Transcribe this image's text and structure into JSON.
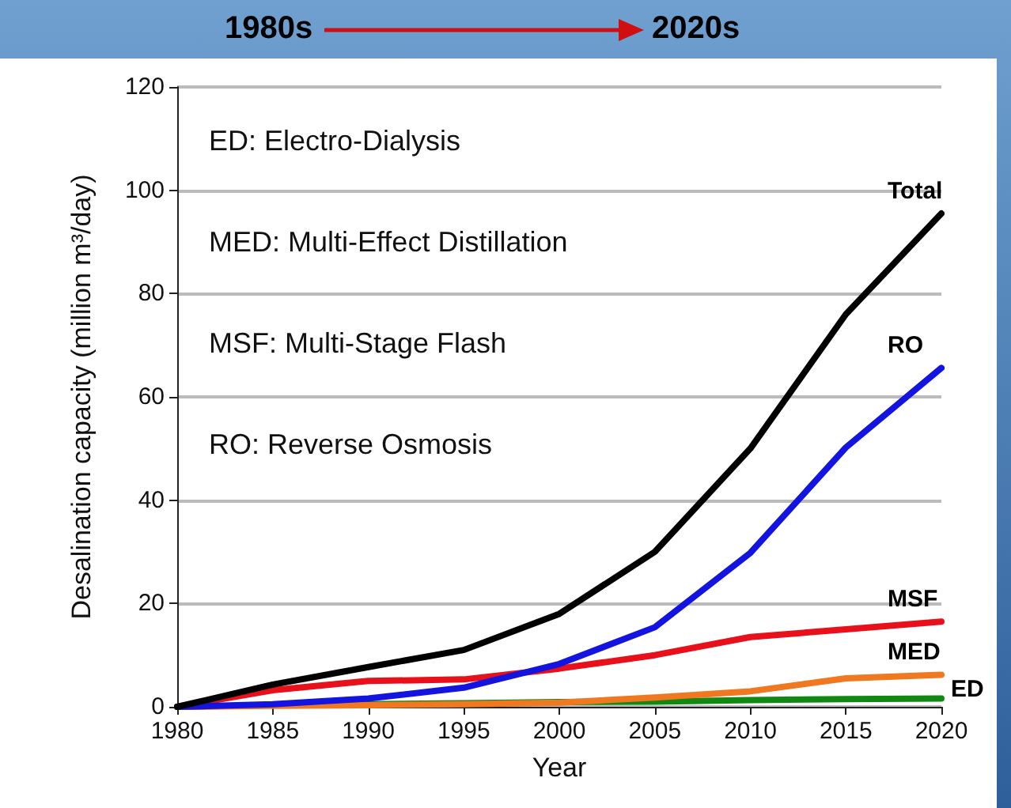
{
  "chart_data": {
    "type": "line",
    "xlabel": "Year",
    "ylabel": "Desalination capacity (million m³/day)",
    "annotations": [
      "1980s",
      "2020s",
      "ED: Electro-Dialysis",
      "MED: Multi-Effect Distillation",
      "MSF: Multi-Stage Flash",
      "RO: Reverse Osmosis"
    ],
    "x": [
      1980,
      1985,
      1990,
      1995,
      2000,
      2005,
      2010,
      2015,
      2020
    ],
    "series": [
      {
        "name": "Total",
        "color": "#000000",
        "values": [
          0,
          4.3,
          7.7,
          11,
          18,
          30,
          50,
          76,
          95.5
        ]
      },
      {
        "name": "RO",
        "color": "#1414e0",
        "values": [
          0,
          0.5,
          1.6,
          3.7,
          8.3,
          15.4,
          29.8,
          50.2,
          65.6
        ]
      },
      {
        "name": "MSF",
        "color": "#e8101a",
        "values": [
          0,
          3.2,
          5,
          5.3,
          7.4,
          10,
          13.5,
          15,
          16.5
        ]
      },
      {
        "name": "MED",
        "color": "#f07820",
        "values": [
          0,
          0.2,
          0.3,
          0.5,
          0.8,
          1.8,
          3,
          5.5,
          6.2
        ]
      },
      {
        "name": "ED",
        "color": "#118811",
        "values": [
          0,
          0.3,
          0.5,
          0.7,
          0.9,
          1,
          1.3,
          1.5,
          1.6
        ]
      }
    ],
    "xlim": [
      1980,
      2020
    ],
    "xticks": [
      1980,
      1985,
      1990,
      1995,
      2000,
      2005,
      2010,
      2015,
      2020
    ],
    "ylim": [
      0,
      120
    ],
    "yticks": [
      0,
      20,
      40,
      60,
      80,
      100,
      120
    ],
    "grid": "y",
    "legend": false,
    "marker": "none",
    "line_style": "solid"
  }
}
